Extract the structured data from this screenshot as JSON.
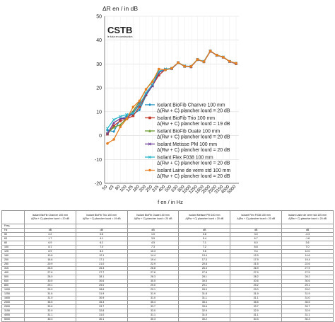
{
  "chart_data": {
    "type": "line",
    "ylabel": "ΔR en / in dB",
    "xlabel": "f en / in Hz",
    "ylim": [
      -20,
      50
    ],
    "yticks": [
      -20,
      -10,
      0,
      10,
      20,
      30,
      40,
      50
    ],
    "categories": [
      "50",
      "63",
      "80",
      "100",
      "125",
      "160",
      "200",
      "250",
      "315",
      "400",
      "500",
      "630",
      "800",
      "1000",
      "1250",
      "1600",
      "2000",
      "2500",
      "3150",
      "4000",
      "5000"
    ],
    "grid": true,
    "legend_position": "right",
    "series": [
      {
        "name": "Isolant BioFib Chanvre 100 mm\nΔ(Rw + C) plancher lourd = 20 dB",
        "color": "#1a8fc4",
        "marker": "diamond",
        "values": [
          2.2,
          1.7,
          6.9,
          8.1,
          8.9,
          10.8,
          16.8,
          20.9,
          26.5,
          27.6,
          28.0,
          30.5,
          29.1,
          29.0,
          31.8,
          31.0,
          35.5,
          33.6,
          32.9,
          31.1,
          30.3
        ]
      },
      {
        "name": "Isolant BioFib Trio 100 mm\nΔ(Rw + C) plancher lourd = 19 dB",
        "color": "#c0392b",
        "marker": "square",
        "values": [
          0.6,
          4.1,
          6.2,
          7.0,
          8.3,
          12.1,
          17.1,
          21.0,
          25.3,
          27.7,
          28.1,
          30.6,
          29.0,
          28.8,
          31.9,
          30.9,
          35.3,
          33.7,
          32.8,
          31.0,
          30.1
        ]
      },
      {
        "name": "Isolant BioFib Ouate 100 mm\nΔ(Rw + C) plancher lourd = 20 dB",
        "color": "#6b9b2f",
        "marker": "triangle",
        "values": [
          1.0,
          3.5,
          4.5,
          7.3,
          10.3,
          14.4,
          19.4,
          22.9,
          26.8,
          27.6,
          28.3,
          30.5,
          29.0,
          29.1,
          31.9,
          31.0,
          35.4,
          33.7,
          33.0,
          31.1,
          30.3
        ]
      },
      {
        "name": "Isolant Metisse PM 100 mm\nΔ(Rw + C) plancher lourd = 20 dB",
        "color": "#6a3d9a",
        "marker": "x",
        "values": [
          0.8,
          5.4,
          7.1,
          7.2,
          9.6,
          13.4,
          17.3,
          20.8,
          26.4,
          27.8,
          28.1,
          30.5,
          29.1,
          28.9,
          31.8,
          31.1,
          35.4,
          33.6,
          32.9,
          31.0,
          30.2
        ]
      },
      {
        "name": "Isolant Flex F038 100 mm\nΔ(Rw + C) plancher lourd = 20 dB",
        "color": "#2ab7c9",
        "marker": "x",
        "values": [
          3.0,
          6.7,
          8.0,
          8.8,
          9.4,
          12.9,
          17.9,
          21.5,
          26.9,
          27.9,
          28.2,
          30.6,
          29.2,
          29.0,
          31.9,
          31.1,
          35.5,
          33.7,
          32.9,
          31.1,
          30.3
        ]
      },
      {
        "name": "Isolant Laine de verre std 100 mm\nΔ(Rw + C) plancher lourd = 20 dB",
        "color": "#e67e22",
        "marker": "circle",
        "values": [
          -3.3,
          -1.6,
          3.6,
          7.0,
          12.0,
          14.6,
          19.4,
          22.6,
          27.9,
          27.5,
          28.2,
          30.6,
          29.1,
          29.0,
          31.9,
          31.0,
          35.5,
          33.7,
          32.9,
          31.1,
          30.3
        ]
      }
    ]
  },
  "logo": {
    "name": "CSTB",
    "tagline": "le futur en construction"
  },
  "table": {
    "freq_header": "Freq.",
    "unit_header": "Hz",
    "unit_value": "dB",
    "headers": [
      "Isolant BioFib Chanvre 100 mm\nΔ(Rw + C) plancher lourd = 20 dB",
      "Isolant BioFib Trio 100 mm\nΔ(Rw + C) plancher lourd = 19 dB",
      "Isolant BioFib Ouate 100 mm\nΔ(Rw + C) plancher lourd = 20 dB",
      "Isolant Metisse PM 100 mm\nΔ(Rw + C) plancher lourd = 20 dB",
      "Isolant Flex F038 100 mm\nΔ(Rw + C) plancher lourd = 20 dB",
      "Isolant Laine de verre std 100 mm\nΔ(Rw + C) plancher lourd = 20 dB"
    ],
    "freqs": [
      "50",
      "63",
      "80",
      "100",
      "125",
      "160",
      "200",
      "250",
      "315",
      "400",
      "500",
      "630",
      "800",
      "1000",
      "1250",
      "1600",
      "2000",
      "2500",
      "3150",
      "4000",
      "5000"
    ]
  }
}
